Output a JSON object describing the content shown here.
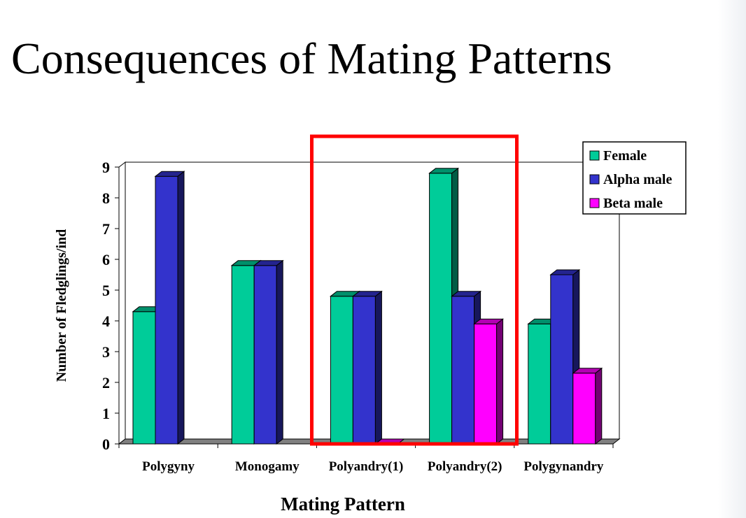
{
  "slide": {
    "title": "Consequences of Mating Patterns"
  },
  "chart_data": {
    "type": "bar",
    "title": "",
    "xlabel": "Mating Pattern",
    "ylabel": "Number of Fledglings/ind",
    "ylim": [
      0,
      9
    ],
    "yticks": [
      0,
      1,
      2,
      3,
      4,
      5,
      6,
      7,
      8,
      9
    ],
    "categories": [
      "Polygyny",
      "Monogamy",
      "Polyandry(1)",
      "Polyandry(2)",
      "Polygynandry"
    ],
    "series": [
      {
        "name": "Female",
        "values": [
          4.3,
          5.8,
          4.8,
          8.8,
          3.9
        ]
      },
      {
        "name": "Alpha male",
        "values": [
          8.7,
          5.8,
          4.8,
          4.8,
          5.5
        ]
      },
      {
        "name": "Beta male",
        "values": [
          null,
          null,
          0,
          3.9,
          2.3
        ]
      }
    ],
    "colors": [
      "#00cc99",
      "#3333cc",
      "#ff00ff"
    ],
    "legend_position": "top-right",
    "highlight": {
      "categories": [
        "Polyandry(1)",
        "Polyandry(2)"
      ],
      "color": "#ff0000"
    }
  }
}
